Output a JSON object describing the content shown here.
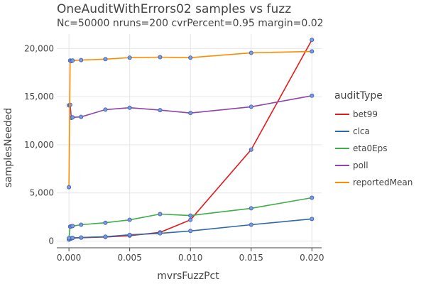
{
  "chart_data": {
    "type": "line",
    "title": "OneAuditWithErrors02 samples vs fuzz",
    "subtitle": "Nc=50000 nruns=200 cvrPercent=0.95 margin=0.02",
    "xlabel": "mvrsFuzzPct",
    "ylabel": "samplesNeeded",
    "xlim": [
      -0.001,
      0.0208
    ],
    "ylim": [
      -700,
      21500
    ],
    "xticks": [
      0,
      0.005,
      0.01,
      0.015,
      0.02
    ],
    "xtick_labels": [
      "0.000",
      "0.005",
      "0.010",
      "0.015",
      "0.020"
    ],
    "yticks": [
      0,
      5000,
      10000,
      15000,
      20000
    ],
    "ytick_labels": [
      "0",
      "5,000",
      "10,000",
      "15,000",
      "20,000"
    ],
    "grid": true,
    "legend_title": "auditType",
    "legend_position": "right",
    "x": [
      0,
      0.0001,
      0.0002,
      0.0003,
      0.001,
      0.003,
      0.005,
      0.0075,
      0.01,
      0.015,
      0.02
    ],
    "series": [
      {
        "name": "bet99",
        "color": "#e31a1c",
        "values": [
          200,
          250,
          280,
          310,
          350,
          420,
          560,
          900,
          2200,
          9500,
          20900
        ]
      },
      {
        "name": "clca",
        "color": "#2e6aa8",
        "values": [
          150,
          230,
          300,
          330,
          370,
          450,
          650,
          800,
          1050,
          1700,
          2300
        ]
      },
      {
        "name": "eta0Eps",
        "color": "#3fae49",
        "values": [
          300,
          1500,
          1530,
          1560,
          1700,
          1900,
          2200,
          2800,
          2650,
          3400,
          4500
        ]
      },
      {
        "name": "poll",
        "color": "#8e44a8",
        "values": [
          14100,
          14150,
          12800,
          12850,
          12900,
          13650,
          13850,
          13600,
          13300,
          13950,
          15100
        ]
      },
      {
        "name": "reportedMean",
        "color": "#ff8c00",
        "values": [
          5600,
          18750,
          18700,
          18750,
          18800,
          18900,
          19050,
          19100,
          19050,
          19550,
          19700
        ]
      }
    ]
  }
}
